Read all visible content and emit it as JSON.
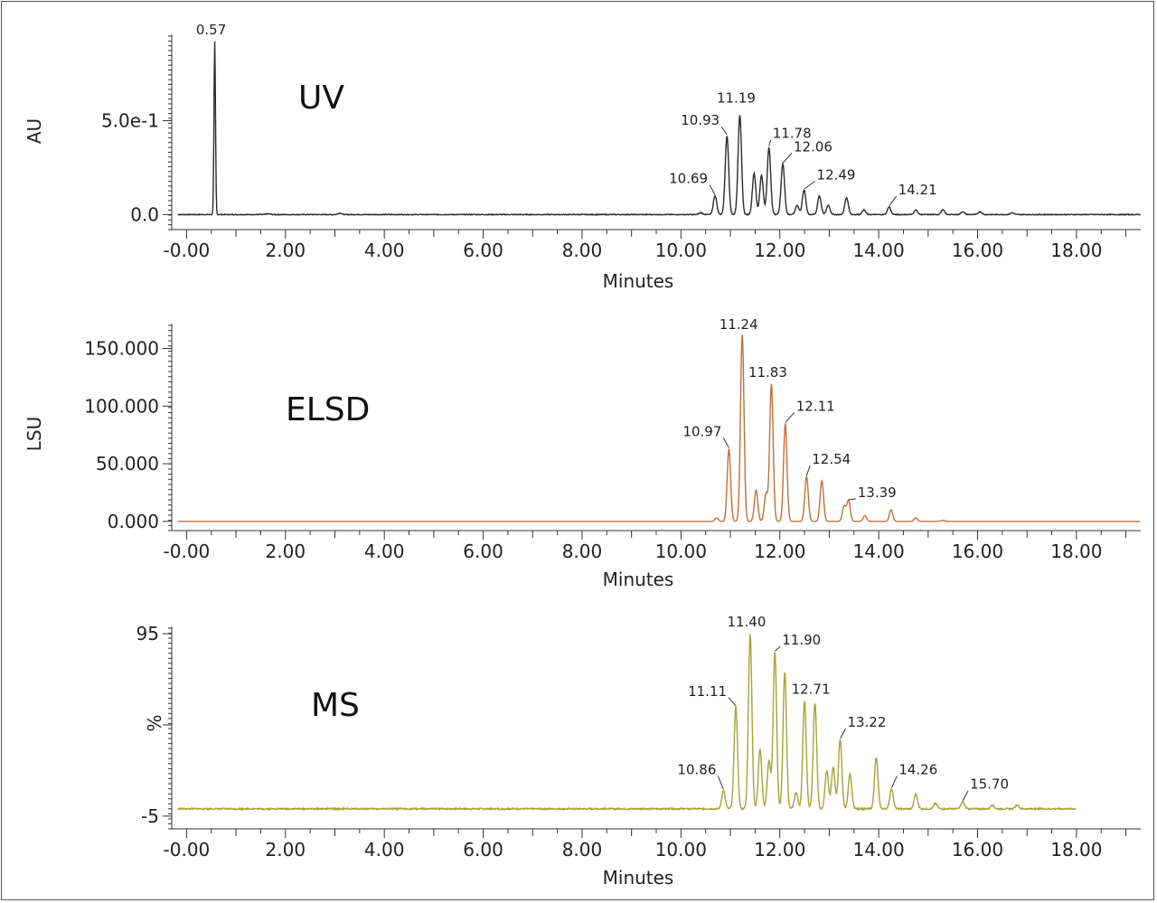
{
  "chart_data": [
    {
      "type": "line",
      "title": "UV",
      "xlabel": "Minutes",
      "ylabel": "AU",
      "color": "#2b2b2b",
      "xlim": [
        -0.3,
        19.3
      ],
      "ylim": [
        -0.08,
        0.95
      ],
      "x_ticks": [
        "-0.00",
        "2.00",
        "4.00",
        "6.00",
        "8.00",
        "10.00",
        "12.00",
        "14.00",
        "16.00",
        "18.00"
      ],
      "y_ticks": [
        {
          "value": 0.0,
          "label": "0.0"
        },
        {
          "value": 0.5,
          "label": "5.0e-1"
        }
      ],
      "baseline": 0.0,
      "x_end": 19.3,
      "noise": 0.002,
      "peaks": [
        {
          "x": 0.57,
          "y": 0.92,
          "label": "0.57"
        },
        {
          "x": 1.65,
          "y": 0.004
        },
        {
          "x": 3.1,
          "y": 0.008
        },
        {
          "x": 10.4,
          "y": 0.01
        },
        {
          "x": 10.69,
          "y": 0.1,
          "label": "10.69"
        },
        {
          "x": 10.93,
          "y": 0.42,
          "label": "10.93"
        },
        {
          "x": 11.19,
          "y": 0.53,
          "label": "11.19"
        },
        {
          "x": 11.48,
          "y": 0.22
        },
        {
          "x": 11.63,
          "y": 0.21
        },
        {
          "x": 11.78,
          "y": 0.36,
          "label": "11.78"
        },
        {
          "x": 12.06,
          "y": 0.27,
          "label": "12.06"
        },
        {
          "x": 12.35,
          "y": 0.05
        },
        {
          "x": 12.49,
          "y": 0.13,
          "label": "12.49"
        },
        {
          "x": 12.8,
          "y": 0.1
        },
        {
          "x": 12.98,
          "y": 0.05
        },
        {
          "x": 13.35,
          "y": 0.09
        },
        {
          "x": 13.7,
          "y": 0.025
        },
        {
          "x": 14.21,
          "y": 0.04,
          "label": "14.21"
        },
        {
          "x": 14.75,
          "y": 0.025
        },
        {
          "x": 15.3,
          "y": 0.025
        },
        {
          "x": 15.7,
          "y": 0.015
        },
        {
          "x": 16.05,
          "y": 0.015
        },
        {
          "x": 16.7,
          "y": 0.01
        }
      ]
    },
    {
      "type": "line",
      "title": "ELSD",
      "xlabel": "Minutes",
      "ylabel": "LSU",
      "color": "#c0703a",
      "xlim": [
        -0.3,
        19.3
      ],
      "ylim": [
        -8,
        170
      ],
      "x_ticks": [
        "-0.00",
        "2.00",
        "4.00",
        "6.00",
        "8.00",
        "10.00",
        "12.00",
        "14.00",
        "16.00",
        "18.00"
      ],
      "y_ticks": [
        {
          "value": 0,
          "label": "0.000"
        },
        {
          "value": 50,
          "label": "50.000"
        },
        {
          "value": 100,
          "label": "100.000"
        },
        {
          "value": 150,
          "label": "150.000"
        }
      ],
      "baseline": 0.0,
      "x_end": 19.3,
      "noise": 0.0,
      "peaks": [
        {
          "x": 10.72,
          "y": 3
        },
        {
          "x": 10.97,
          "y": 63,
          "label": "10.97"
        },
        {
          "x": 11.24,
          "y": 162,
          "label": "11.24"
        },
        {
          "x": 11.52,
          "y": 27
        },
        {
          "x": 11.72,
          "y": 24
        },
        {
          "x": 11.83,
          "y": 119,
          "label": "11.83"
        },
        {
          "x": 12.11,
          "y": 85,
          "label": "12.11"
        },
        {
          "x": 12.54,
          "y": 39,
          "label": "12.54"
        },
        {
          "x": 12.85,
          "y": 35
        },
        {
          "x": 13.3,
          "y": 13
        },
        {
          "x": 13.39,
          "y": 18,
          "label": "13.39"
        },
        {
          "x": 13.72,
          "y": 5
        },
        {
          "x": 14.25,
          "y": 10
        },
        {
          "x": 14.75,
          "y": 3
        },
        {
          "x": 15.3,
          "y": 1
        }
      ]
    },
    {
      "type": "line",
      "title": "MS",
      "xlabel": "Minutes",
      "ylabel": "%",
      "color": "#a3a43a",
      "xlim": [
        -0.3,
        19.3
      ],
      "ylim": [
        -12,
        98
      ],
      "x_ticks": [
        "-0.00",
        "2.00",
        "4.00",
        "6.00",
        "8.00",
        "10.00",
        "12.00",
        "14.00",
        "16.00",
        "18.00"
      ],
      "y_ticks": [
        {
          "value": -5,
          "label": "-5"
        },
        {
          "value": 45,
          "label": ""
        },
        {
          "value": 95,
          "label": "95"
        }
      ],
      "baseline": -1,
      "x_end": 18.0,
      "noise": 0.4,
      "peaks": [
        {
          "x": 10.86,
          "y": 9,
          "label": "10.86"
        },
        {
          "x": 11.11,
          "y": 55,
          "label": "11.11"
        },
        {
          "x": 11.4,
          "y": 95,
          "label": "11.40"
        },
        {
          "x": 11.6,
          "y": 32
        },
        {
          "x": 11.78,
          "y": 25
        },
        {
          "x": 11.9,
          "y": 85,
          "label": "11.90"
        },
        {
          "x": 12.1,
          "y": 74
        },
        {
          "x": 12.33,
          "y": 8
        },
        {
          "x": 12.5,
          "y": 58
        },
        {
          "x": 12.71,
          "y": 57,
          "label": "12.71"
        },
        {
          "x": 12.95,
          "y": 20
        },
        {
          "x": 13.08,
          "y": 22
        },
        {
          "x": 13.22,
          "y": 37,
          "label": "13.22"
        },
        {
          "x": 13.42,
          "y": 18
        },
        {
          "x": 13.95,
          "y": 27
        },
        {
          "x": 14.26,
          "y": 10,
          "label": "14.26"
        },
        {
          "x": 14.75,
          "y": 7
        },
        {
          "x": 15.15,
          "y": 2
        },
        {
          "x": 15.7,
          "y": 3,
          "label": "15.70"
        },
        {
          "x": 16.3,
          "y": 1
        },
        {
          "x": 16.8,
          "y": 1
        }
      ]
    }
  ]
}
